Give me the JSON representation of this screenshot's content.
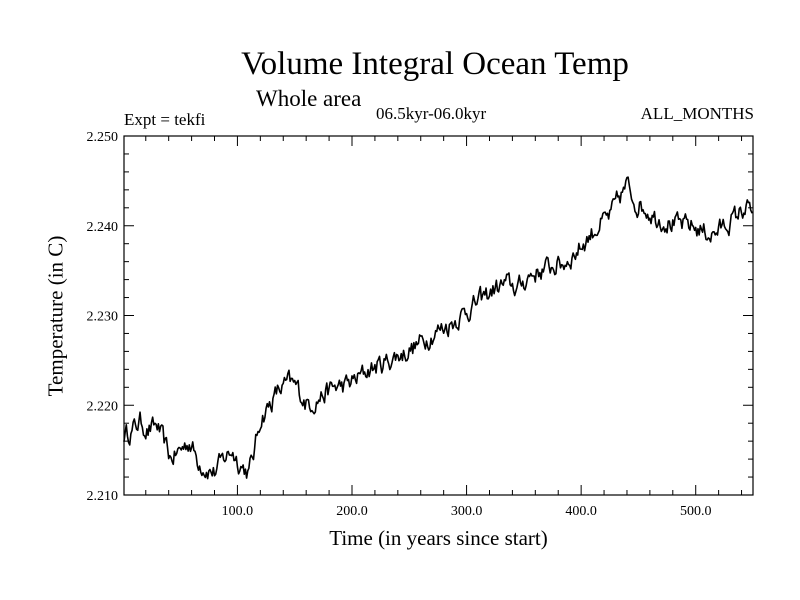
{
  "chart_data": {
    "type": "line",
    "title": "Volume Integral Ocean Temp",
    "subtitle": "Whole area",
    "period": "06.5kyr-06.0kyr",
    "experiment": "Expt = tekfi",
    "months": "ALL_MONTHS",
    "xlabel": "Time (in years since start)",
    "ylabel": "Temperature (in C)",
    "xlim": [
      1,
      550
    ],
    "ylim": [
      2.21,
      2.25
    ],
    "xticks": [
      100,
      200,
      300,
      400,
      500
    ],
    "xtick_labels": [
      "100.0",
      "200.0",
      "300.0",
      "400.0",
      "500.0"
    ],
    "yticks": [
      2.21,
      2.22,
      2.23,
      2.24,
      2.25
    ],
    "ytick_labels": [
      "2.210",
      "2.220",
      "2.230",
      "2.240",
      "2.250"
    ],
    "series": [
      {
        "name": "Volume integral ocean temperature",
        "color": "#000000",
        "anchors": [
          [
            1,
            2.2167
          ],
          [
            8,
            2.2172
          ],
          [
            15,
            2.2182
          ],
          [
            22,
            2.2172
          ],
          [
            30,
            2.2177
          ],
          [
            36,
            2.2158
          ],
          [
            42,
            2.214
          ],
          [
            50,
            2.215
          ],
          [
            58,
            2.216
          ],
          [
            65,
            2.214
          ],
          [
            72,
            2.213
          ],
          [
            80,
            2.2125
          ],
          [
            88,
            2.214
          ],
          [
            95,
            2.215
          ],
          [
            102,
            2.2135
          ],
          [
            110,
            2.2125
          ],
          [
            115,
            2.215
          ],
          [
            120,
            2.2185
          ],
          [
            128,
            2.22
          ],
          [
            135,
            2.2215
          ],
          [
            145,
            2.2225
          ],
          [
            152,
            2.222
          ],
          [
            160,
            2.2202
          ],
          [
            168,
            2.2205
          ],
          [
            175,
            2.2212
          ],
          [
            185,
            2.222
          ],
          [
            195,
            2.2222
          ],
          [
            205,
            2.223
          ],
          [
            215,
            2.224
          ],
          [
            225,
            2.2245
          ],
          [
            235,
            2.2252
          ],
          [
            245,
            2.2258
          ],
          [
            255,
            2.2265
          ],
          [
            265,
            2.2275
          ],
          [
            275,
            2.2283
          ],
          [
            285,
            2.229
          ],
          [
            295,
            2.23
          ],
          [
            305,
            2.231
          ],
          [
            315,
            2.232
          ],
          [
            325,
            2.233
          ],
          [
            335,
            2.2335
          ],
          [
            345,
            2.233
          ],
          [
            355,
            2.2345
          ],
          [
            365,
            2.235
          ],
          [
            375,
            2.2355
          ],
          [
            385,
            2.2358
          ],
          [
            395,
            2.237
          ],
          [
            405,
            2.2385
          ],
          [
            415,
            2.24
          ],
          [
            425,
            2.241
          ],
          [
            433,
            2.243
          ],
          [
            440,
            2.2445
          ],
          [
            448,
            2.2425
          ],
          [
            456,
            2.242
          ],
          [
            465,
            2.241
          ],
          [
            475,
            2.2405
          ],
          [
            485,
            2.24
          ],
          [
            495,
            2.24
          ],
          [
            505,
            2.2395
          ],
          [
            515,
            2.239
          ],
          [
            525,
            2.24
          ],
          [
            535,
            2.241
          ],
          [
            543,
            2.242
          ],
          [
            550,
            2.2415
          ]
        ],
        "noise_amplitude": 0.0012
      }
    ]
  }
}
